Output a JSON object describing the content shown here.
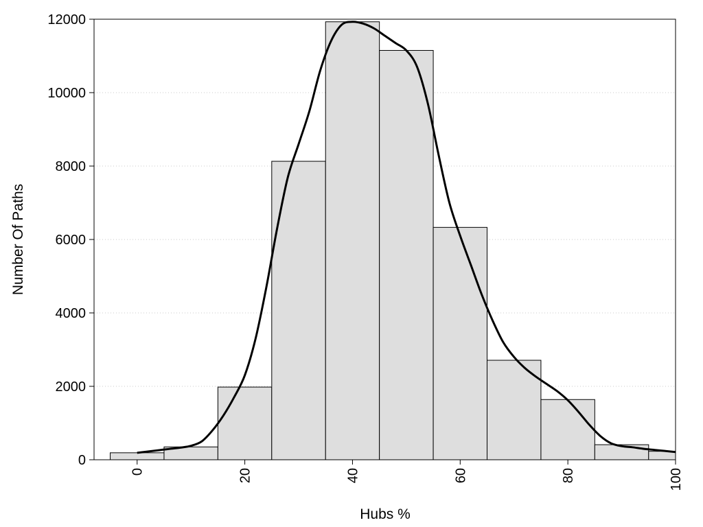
{
  "chart_data": {
    "type": "bar",
    "title": "",
    "xlabel": "Hubs %",
    "ylabel": "Number Of Paths",
    "xlim": [
      -8,
      100
    ],
    "ylim": [
      0,
      12000
    ],
    "xticks": [
      0,
      20,
      40,
      60,
      80,
      100
    ],
    "yticks": [
      0,
      2000,
      4000,
      6000,
      8000,
      10000,
      12000
    ],
    "grid": "horizontal-dotted",
    "bin_width": 10,
    "bins": [
      {
        "center": 0,
        "value": 190
      },
      {
        "center": 10,
        "value": 350
      },
      {
        "center": 20,
        "value": 1980
      },
      {
        "center": 30,
        "value": 8130
      },
      {
        "center": 40,
        "value": 11930
      },
      {
        "center": 50,
        "value": 11150
      },
      {
        "center": 60,
        "value": 6330
      },
      {
        "center": 70,
        "value": 2710
      },
      {
        "center": 80,
        "value": 1640
      },
      {
        "center": 90,
        "value": 410
      },
      {
        "center": 100,
        "value": 230
      }
    ],
    "density_curve": {
      "x": [
        0,
        4,
        8,
        10,
        12,
        14,
        16,
        18,
        20,
        22,
        24,
        26,
        28,
        30,
        32,
        34,
        36,
        38,
        40,
        42,
        44,
        46,
        48,
        50,
        52,
        54,
        56,
        58,
        60,
        62,
        64,
        66,
        68,
        70,
        72,
        74,
        76,
        78,
        80,
        82,
        84,
        86,
        88,
        90,
        92,
        94,
        96,
        98,
        100
      ],
      "y": [
        190,
        260,
        330,
        380,
        500,
        800,
        1200,
        1700,
        2300,
        3300,
        4700,
        6300,
        7700,
        8600,
        9500,
        10600,
        11400,
        11850,
        11930,
        11880,
        11750,
        11550,
        11350,
        11150,
        10700,
        9700,
        8300,
        7000,
        6100,
        5300,
        4500,
        3800,
        3200,
        2800,
        2500,
        2270,
        2070,
        1870,
        1620,
        1300,
        950,
        650,
        450,
        370,
        340,
        300,
        270,
        240,
        210
      ]
    },
    "colors": {
      "bar_fill": "#dedede",
      "bar_stroke": "#000000",
      "curve": "#000000",
      "grid": "#c8c8c8"
    }
  }
}
